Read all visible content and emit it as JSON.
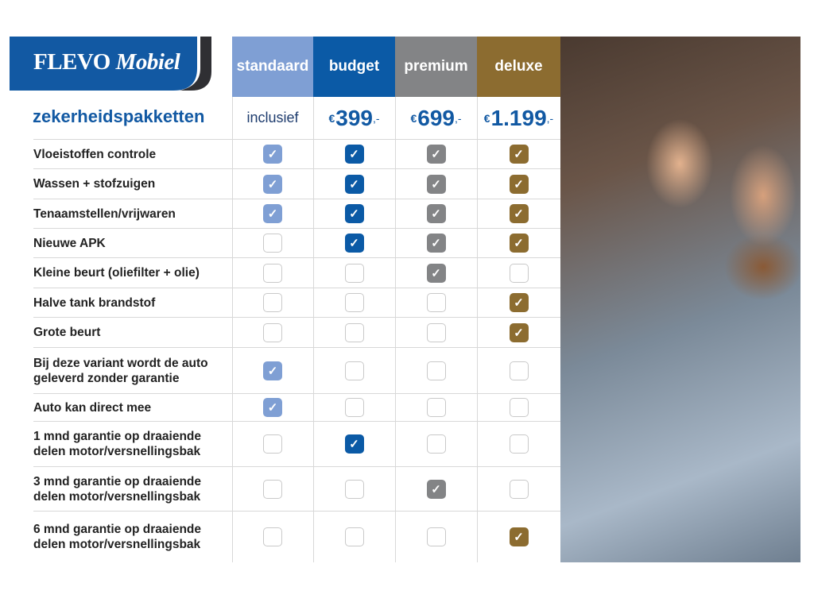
{
  "logo": {
    "brand": "FLEVO",
    "brand2": "Mobiel",
    "color": "#1259a3"
  },
  "title": "zekerheidspakketten",
  "colors": {
    "standaard": "#7f9fd4",
    "budget": "#0b5aa6",
    "premium": "#838486",
    "deluxe": "#8c6c30"
  },
  "packages": [
    {
      "key": "standaard",
      "name": "standaard",
      "price": "inclusief"
    },
    {
      "key": "budget",
      "name": "budget",
      "currency": "€",
      "amount": "399",
      "suffix": ",-"
    },
    {
      "key": "premium",
      "name": "premium",
      "currency": "€",
      "amount": "699",
      "suffix": ",-"
    },
    {
      "key": "deluxe",
      "name": "deluxe",
      "currency": "€",
      "amount": "1.199",
      "suffix": ",-"
    }
  ],
  "rows": [
    {
      "label": "Vloeistoffen controle",
      "checks": [
        1,
        1,
        1,
        1
      ]
    },
    {
      "label": "Wassen + stofzuigen",
      "checks": [
        1,
        1,
        1,
        1
      ]
    },
    {
      "label": "Tenaamstellen/vrijwaren",
      "checks": [
        1,
        1,
        1,
        1
      ]
    },
    {
      "label": "Nieuwe APK",
      "checks": [
        0,
        1,
        1,
        1
      ]
    },
    {
      "label": "Kleine beurt (oliefilter + olie)",
      "checks": [
        0,
        0,
        1,
        0
      ]
    },
    {
      "label": "Halve tank brandstof",
      "checks": [
        0,
        0,
        0,
        1
      ]
    },
    {
      "label": "Grote beurt",
      "checks": [
        0,
        0,
        0,
        1
      ]
    },
    {
      "label": "Bij deze variant wordt de auto geleverd zonder garantie",
      "checks": [
        1,
        0,
        0,
        0
      ]
    },
    {
      "label": "Auto kan direct mee",
      "checks": [
        1,
        0,
        0,
        0
      ]
    },
    {
      "label": "1 mnd garantie op draaiende delen motor/versnellingsbak",
      "checks": [
        0,
        1,
        0,
        0
      ]
    },
    {
      "label": "3 mnd garantie op draaiende delen motor/versnellingsbak",
      "checks": [
        0,
        0,
        1,
        0
      ]
    },
    {
      "label": "6 mnd garantie op draaiende delen motor/versnellingsbak",
      "checks": [
        0,
        0,
        0,
        1
      ]
    }
  ],
  "photo": {
    "icon": "couple-in-car-photo"
  }
}
